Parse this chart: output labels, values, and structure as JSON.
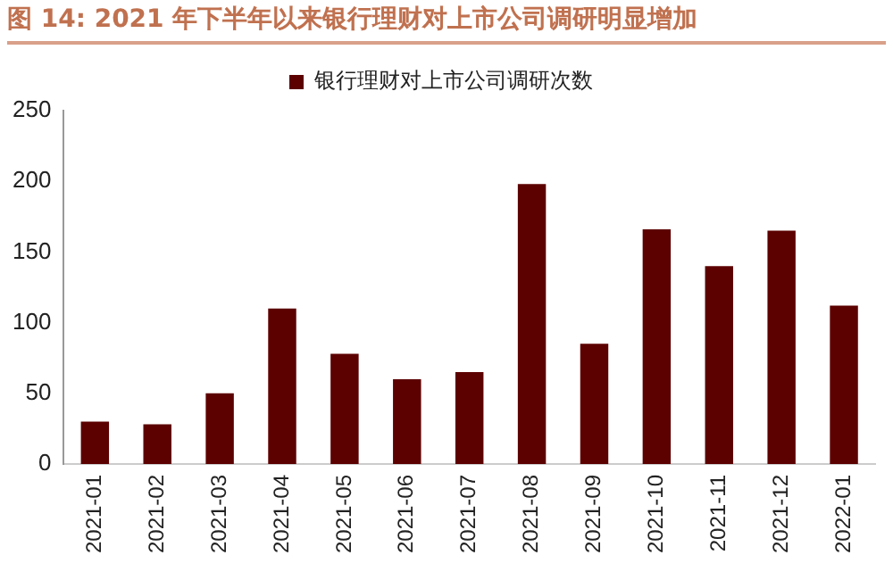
{
  "chart_data": {
    "type": "bar",
    "title": "图 14:  2021 年下半年以来银行理财对上市公司调研明显增加",
    "categories": [
      "2021-01",
      "2021-02",
      "2021-03",
      "2021-04",
      "2021-05",
      "2021-06",
      "2021-07",
      "2021-08",
      "2021-09",
      "2021-10",
      "2021-11",
      "2021-12",
      "2022-01"
    ],
    "series": [
      {
        "name": "银行理财对上市公司调研次数",
        "color": "#5c0000",
        "values": [
          30,
          28,
          50,
          110,
          78,
          60,
          65,
          198,
          85,
          166,
          140,
          165,
          112
        ]
      }
    ],
    "ylim": [
      0,
      250
    ],
    "yticks": [
      0,
      50,
      100,
      150,
      200,
      250
    ],
    "grid": false,
    "legend": "top"
  }
}
